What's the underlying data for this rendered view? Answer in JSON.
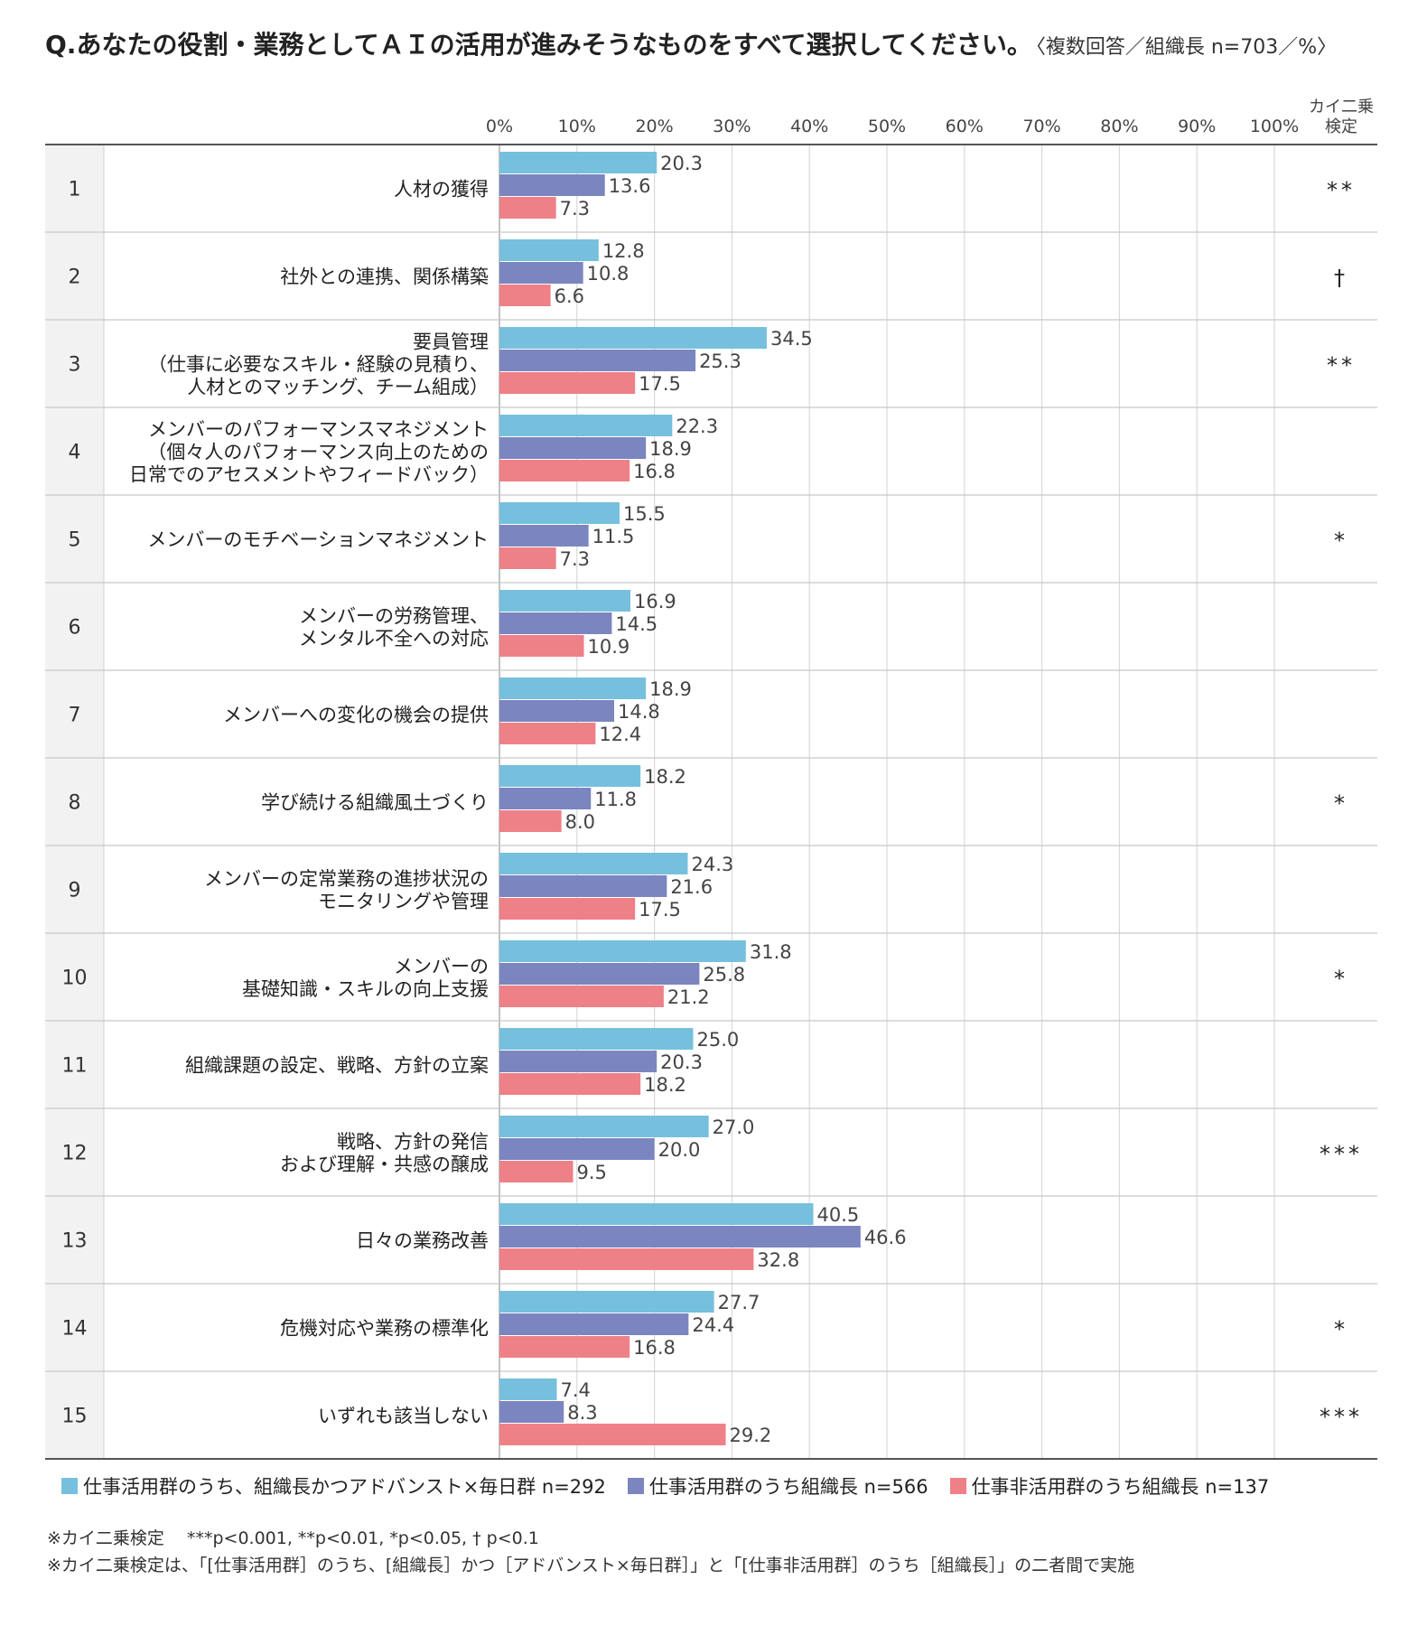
{
  "title": "Q.あなたの役割・業務としてＡＩの活用が進みそうなものをすべて選択してください。",
  "subtitle": "〈複数回答／組織長 n=703／%〉",
  "chi_header": [
    "カイ二乗",
    "検定"
  ],
  "colors": {
    "series1": "#76c0dd",
    "series2": "#7b85bf",
    "series3": "#ee8088",
    "grid": "#d9d9d9",
    "rowband": "#f2f2f2"
  },
  "legend": [
    {
      "label": "仕事活用群のうち、組織長かつアドバンスト×毎日群 n=292",
      "color": "#76c0dd"
    },
    {
      "label": "仕事活用群のうち組織長 n=566",
      "color": "#7b85bf"
    },
    {
      "label": "仕事非活用群のうち組織長 n=137",
      "color": "#ee8088"
    }
  ],
  "footnotes": [
    "※カイ二乗検定　 ***p<0.001, **p<0.01, *p<0.05, † p<0.1",
    "※カイ二乗検定は、「[仕事活用群］のうち、[組織長］かつ［アドバンスト×毎日群］」と「[仕事非活用群］のうち［組織長］」の二者間で実施"
  ],
  "chart_data": {
    "type": "bar",
    "orientation": "horizontal",
    "xlim": [
      0,
      100
    ],
    "ticks": [
      "0%",
      "10%",
      "20%",
      "30%",
      "40%",
      "50%",
      "60%",
      "70%",
      "80%",
      "90%",
      "100%"
    ],
    "grid": true,
    "legend_position": "bottom",
    "categories": [
      {
        "no": "1",
        "label": [
          "人材の獲得"
        ],
        "sig": "**"
      },
      {
        "no": "2",
        "label": [
          "社外との連携、関係構築"
        ],
        "sig": "†"
      },
      {
        "no": "3",
        "label": [
          "要員管理",
          "（仕事に必要なスキル・経験の見積り、",
          "人材とのマッチング、チーム組成）"
        ],
        "sig": "**"
      },
      {
        "no": "4",
        "label": [
          "メンバーのパフォーマンスマネジメント",
          "（個々人のパフォーマンス向上のための",
          "日常でのアセスメントやフィードバック）"
        ],
        "sig": ""
      },
      {
        "no": "5",
        "label": [
          "メンバーのモチベーションマネジメント"
        ],
        "sig": "*"
      },
      {
        "no": "6",
        "label": [
          "メンバーの労務管理、",
          "メンタル不全への対応"
        ],
        "sig": ""
      },
      {
        "no": "7",
        "label": [
          "メンバーへの変化の機会の提供"
        ],
        "sig": ""
      },
      {
        "no": "8",
        "label": [
          "学び続ける組織風土づくり"
        ],
        "sig": "*"
      },
      {
        "no": "9",
        "label": [
          "メンバーの定常業務の進捗状況の",
          "モニタリングや管理"
        ],
        "sig": ""
      },
      {
        "no": "10",
        "label": [
          "メンバーの",
          "基礎知識・スキルの向上支援"
        ],
        "sig": "*"
      },
      {
        "no": "11",
        "label": [
          "組織課題の設定、戦略、方針の立案"
        ],
        "sig": ""
      },
      {
        "no": "12",
        "label": [
          "戦略、方針の発信",
          "および理解・共感の醸成"
        ],
        "sig": "***"
      },
      {
        "no": "13",
        "label": [
          "日々の業務改善"
        ],
        "sig": ""
      },
      {
        "no": "14",
        "label": [
          "危機対応や業務の標準化"
        ],
        "sig": "*"
      },
      {
        "no": "15",
        "label": [
          "いずれも該当しない"
        ],
        "sig": "***"
      }
    ],
    "series": [
      {
        "name": "仕事活用群のうち、組織長かつアドバンスト×毎日群 n=292",
        "values": [
          20.3,
          12.8,
          34.5,
          22.3,
          15.5,
          16.9,
          18.9,
          18.2,
          24.3,
          31.8,
          25.0,
          27.0,
          40.5,
          27.7,
          7.4
        ],
        "labels": [
          "20.3",
          "12.8",
          "34.5",
          "22.3",
          "15.5",
          "16.9",
          "18.9",
          "18.2",
          "24.3",
          "31.8",
          "25.0",
          "27.0",
          "40.5",
          "27.7",
          "7.4"
        ]
      },
      {
        "name": "仕事活用群のうち組織長 n=566",
        "values": [
          13.6,
          10.8,
          25.3,
          18.9,
          11.5,
          14.5,
          14.8,
          11.8,
          21.6,
          25.8,
          20.3,
          20.0,
          46.6,
          24.4,
          8.3
        ],
        "labels": [
          "13.6",
          "10.8",
          "25.3",
          "18.9",
          "11.5",
          "14.5",
          "14.8",
          "11.8",
          "21.6",
          "25.8",
          "20.3",
          "20.0",
          "46.6",
          "24.4",
          "8.3"
        ]
      },
      {
        "name": "仕事非活用群のうち組織長 n=137",
        "values": [
          7.3,
          6.6,
          17.5,
          16.8,
          7.3,
          10.9,
          12.4,
          8.0,
          17.5,
          21.2,
          18.2,
          9.5,
          32.8,
          16.8,
          29.2
        ],
        "labels": [
          "7.3",
          "6.6",
          "17.5",
          "16.8",
          "7.3",
          "10.9",
          "12.4",
          "8.0",
          "17.5",
          "21.2",
          "18.2",
          "9.5",
          "32.8",
          "16.8",
          "29.2"
        ]
      }
    ]
  }
}
